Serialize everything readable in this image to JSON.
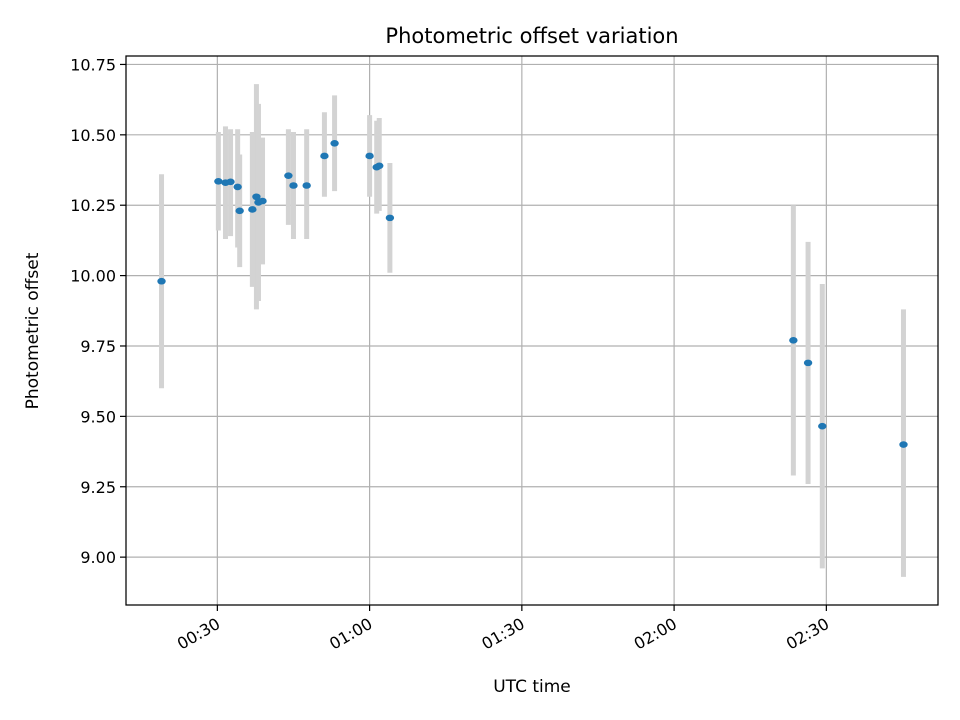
{
  "chart_data": {
    "type": "scatter",
    "title": "Photometric offset variation",
    "xlabel": "UTC time",
    "ylabel": "Photometric offset",
    "x_unit": "minutes",
    "xlim": [
      12,
      172
    ],
    "ylim": [
      8.83,
      10.78
    ],
    "xticks": [
      {
        "value": 30,
        "label": "00:30"
      },
      {
        "value": 60,
        "label": "01:00"
      },
      {
        "value": 90,
        "label": "01:30"
      },
      {
        "value": 120,
        "label": "02:00"
      },
      {
        "value": 150,
        "label": "02:30"
      }
    ],
    "yticks": [
      {
        "value": 9.0,
        "label": "9.00"
      },
      {
        "value": 9.25,
        "label": "9.25"
      },
      {
        "value": 9.5,
        "label": "9.50"
      },
      {
        "value": 9.75,
        "label": "9.75"
      },
      {
        "value": 10.0,
        "label": "10.00"
      },
      {
        "value": 10.25,
        "label": "10.25"
      },
      {
        "value": 10.5,
        "label": "10.50"
      },
      {
        "value": 10.75,
        "label": "10.75"
      }
    ],
    "grid": true,
    "point_color": "#1f77b4",
    "errorbar_color": "#d3d3d3",
    "points": [
      {
        "x": 19.0,
        "y": 9.98,
        "lo": 9.6,
        "hi": 10.36
      },
      {
        "x": 30.2,
        "y": 10.335,
        "lo": 10.16,
        "hi": 10.51
      },
      {
        "x": 31.6,
        "y": 10.33,
        "lo": 10.13,
        "hi": 10.53
      },
      {
        "x": 32.6,
        "y": 10.333,
        "lo": 10.14,
        "hi": 10.52
      },
      {
        "x": 34.0,
        "y": 10.315,
        "lo": 10.1,
        "hi": 10.52
      },
      {
        "x": 34.4,
        "y": 10.23,
        "lo": 10.03,
        "hi": 10.43
      },
      {
        "x": 36.9,
        "y": 10.235,
        "lo": 9.96,
        "hi": 10.51
      },
      {
        "x": 37.7,
        "y": 10.28,
        "lo": 9.88,
        "hi": 10.68
      },
      {
        "x": 38.1,
        "y": 10.26,
        "lo": 9.91,
        "hi": 10.61
      },
      {
        "x": 38.9,
        "y": 10.265,
        "lo": 10.04,
        "hi": 10.49
      },
      {
        "x": 44.0,
        "y": 10.355,
        "lo": 10.18,
        "hi": 10.52
      },
      {
        "x": 45.0,
        "y": 10.32,
        "lo": 10.13,
        "hi": 10.51
      },
      {
        "x": 47.6,
        "y": 10.32,
        "lo": 10.13,
        "hi": 10.52
      },
      {
        "x": 51.1,
        "y": 10.425,
        "lo": 10.28,
        "hi": 10.58
      },
      {
        "x": 53.1,
        "y": 10.47,
        "lo": 10.3,
        "hi": 10.64
      },
      {
        "x": 60.0,
        "y": 10.425,
        "lo": 10.28,
        "hi": 10.57
      },
      {
        "x": 61.4,
        "y": 10.385,
        "lo": 10.22,
        "hi": 10.55
      },
      {
        "x": 61.9,
        "y": 10.39,
        "lo": 10.23,
        "hi": 10.56
      },
      {
        "x": 64.0,
        "y": 10.205,
        "lo": 10.01,
        "hi": 10.4
      },
      {
        "x": 143.5,
        "y": 9.77,
        "lo": 9.29,
        "hi": 10.25
      },
      {
        "x": 146.4,
        "y": 9.69,
        "lo": 9.26,
        "hi": 10.12
      },
      {
        "x": 149.2,
        "y": 9.465,
        "lo": 8.96,
        "hi": 9.97
      },
      {
        "x": 165.2,
        "y": 9.4,
        "lo": 8.93,
        "hi": 9.88
      }
    ]
  }
}
